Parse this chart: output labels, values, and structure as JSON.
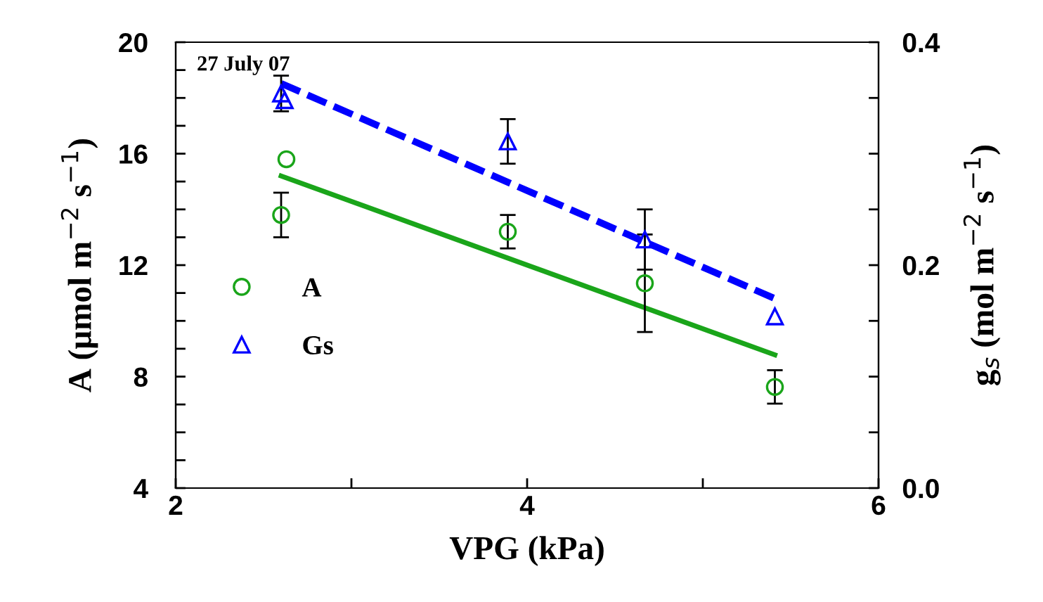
{
  "chart_data": {
    "type": "scatter",
    "xlabel": "VPG (kPa)",
    "ylabel": "A (μmol m$^{−2}$ s$^{−1}$)",
    "y2label": "g$_{s}$ (mol m$^{−2}$ s$^{−1}$)",
    "annotations": [
      "27 July 07"
    ],
    "xlim": [
      2,
      6
    ],
    "xticks": [
      2,
      {
        "value": 3,
        "label": null
      },
      4,
      {
        "value": 5,
        "label": null
      },
      6
    ],
    "ylim": [
      4,
      20
    ],
    "yticks": [
      4,
      {
        "value": 5,
        "label": null
      },
      {
        "value": 6,
        "label": null
      },
      {
        "value": 7,
        "label": null
      },
      8,
      {
        "value": 9,
        "label": null
      },
      {
        "value": 10,
        "label": null
      },
      {
        "value": 11,
        "label": null
      },
      12,
      {
        "value": 13,
        "label": null
      },
      {
        "value": 14,
        "label": null
      },
      {
        "value": 15,
        "label": null
      },
      16,
      {
        "value": 17,
        "label": null
      },
      {
        "value": 18,
        "label": null
      },
      {
        "value": 19,
        "label": null
      },
      20
    ],
    "y2lim": [
      0,
      0.4
    ],
    "y2ticks": [
      {
        "value": 0,
        "label": "0.0"
      },
      {
        "value": 0.05,
        "label": null
      },
      {
        "value": 0.1,
        "label": null
      },
      {
        "value": 0.15,
        "label": null
      },
      0.2,
      {
        "value": 0.25,
        "label": null
      },
      {
        "value": 0.3,
        "label": null
      },
      {
        "value": 0.35,
        "label": null
      },
      0.4
    ],
    "grid": false,
    "legend": "left",
    "series": [
      {
        "name": "A",
        "marker": "circle",
        "color": "#1aa51a",
        "x": [
          2.6,
          2.63,
          3.89,
          4.67,
          5.41
        ],
        "values": [
          13.8,
          15.8,
          13.2,
          11.35,
          7.63
        ],
        "errors": [
          0.8,
          null,
          0.6,
          1.75,
          0.6
        ]
      },
      {
        "name": "Gs",
        "marker": "triangle",
        "axis": "y2",
        "color": "#0000ff",
        "x": [
          2.6,
          2.62,
          3.89,
          4.67,
          5.41
        ],
        "values": [
          0.354,
          0.348,
          0.311,
          0.223,
          0.154
        ],
        "errors": [
          0.016,
          null,
          0.02,
          0.027,
          null
        ]
      },
      {
        "type": "line",
        "line_style": "solid",
        "color": "#1aa51a",
        "x": [
          2.6,
          5.41
        ],
        "values": [
          15.2,
          8.78
        ]
      },
      {
        "type": "line",
        "line_style": "dashed",
        "axis": "y2",
        "color": "#0000ff",
        "x": [
          2.6,
          5.41
        ],
        "values": [
          0.363,
          0.17
        ]
      }
    ]
  }
}
